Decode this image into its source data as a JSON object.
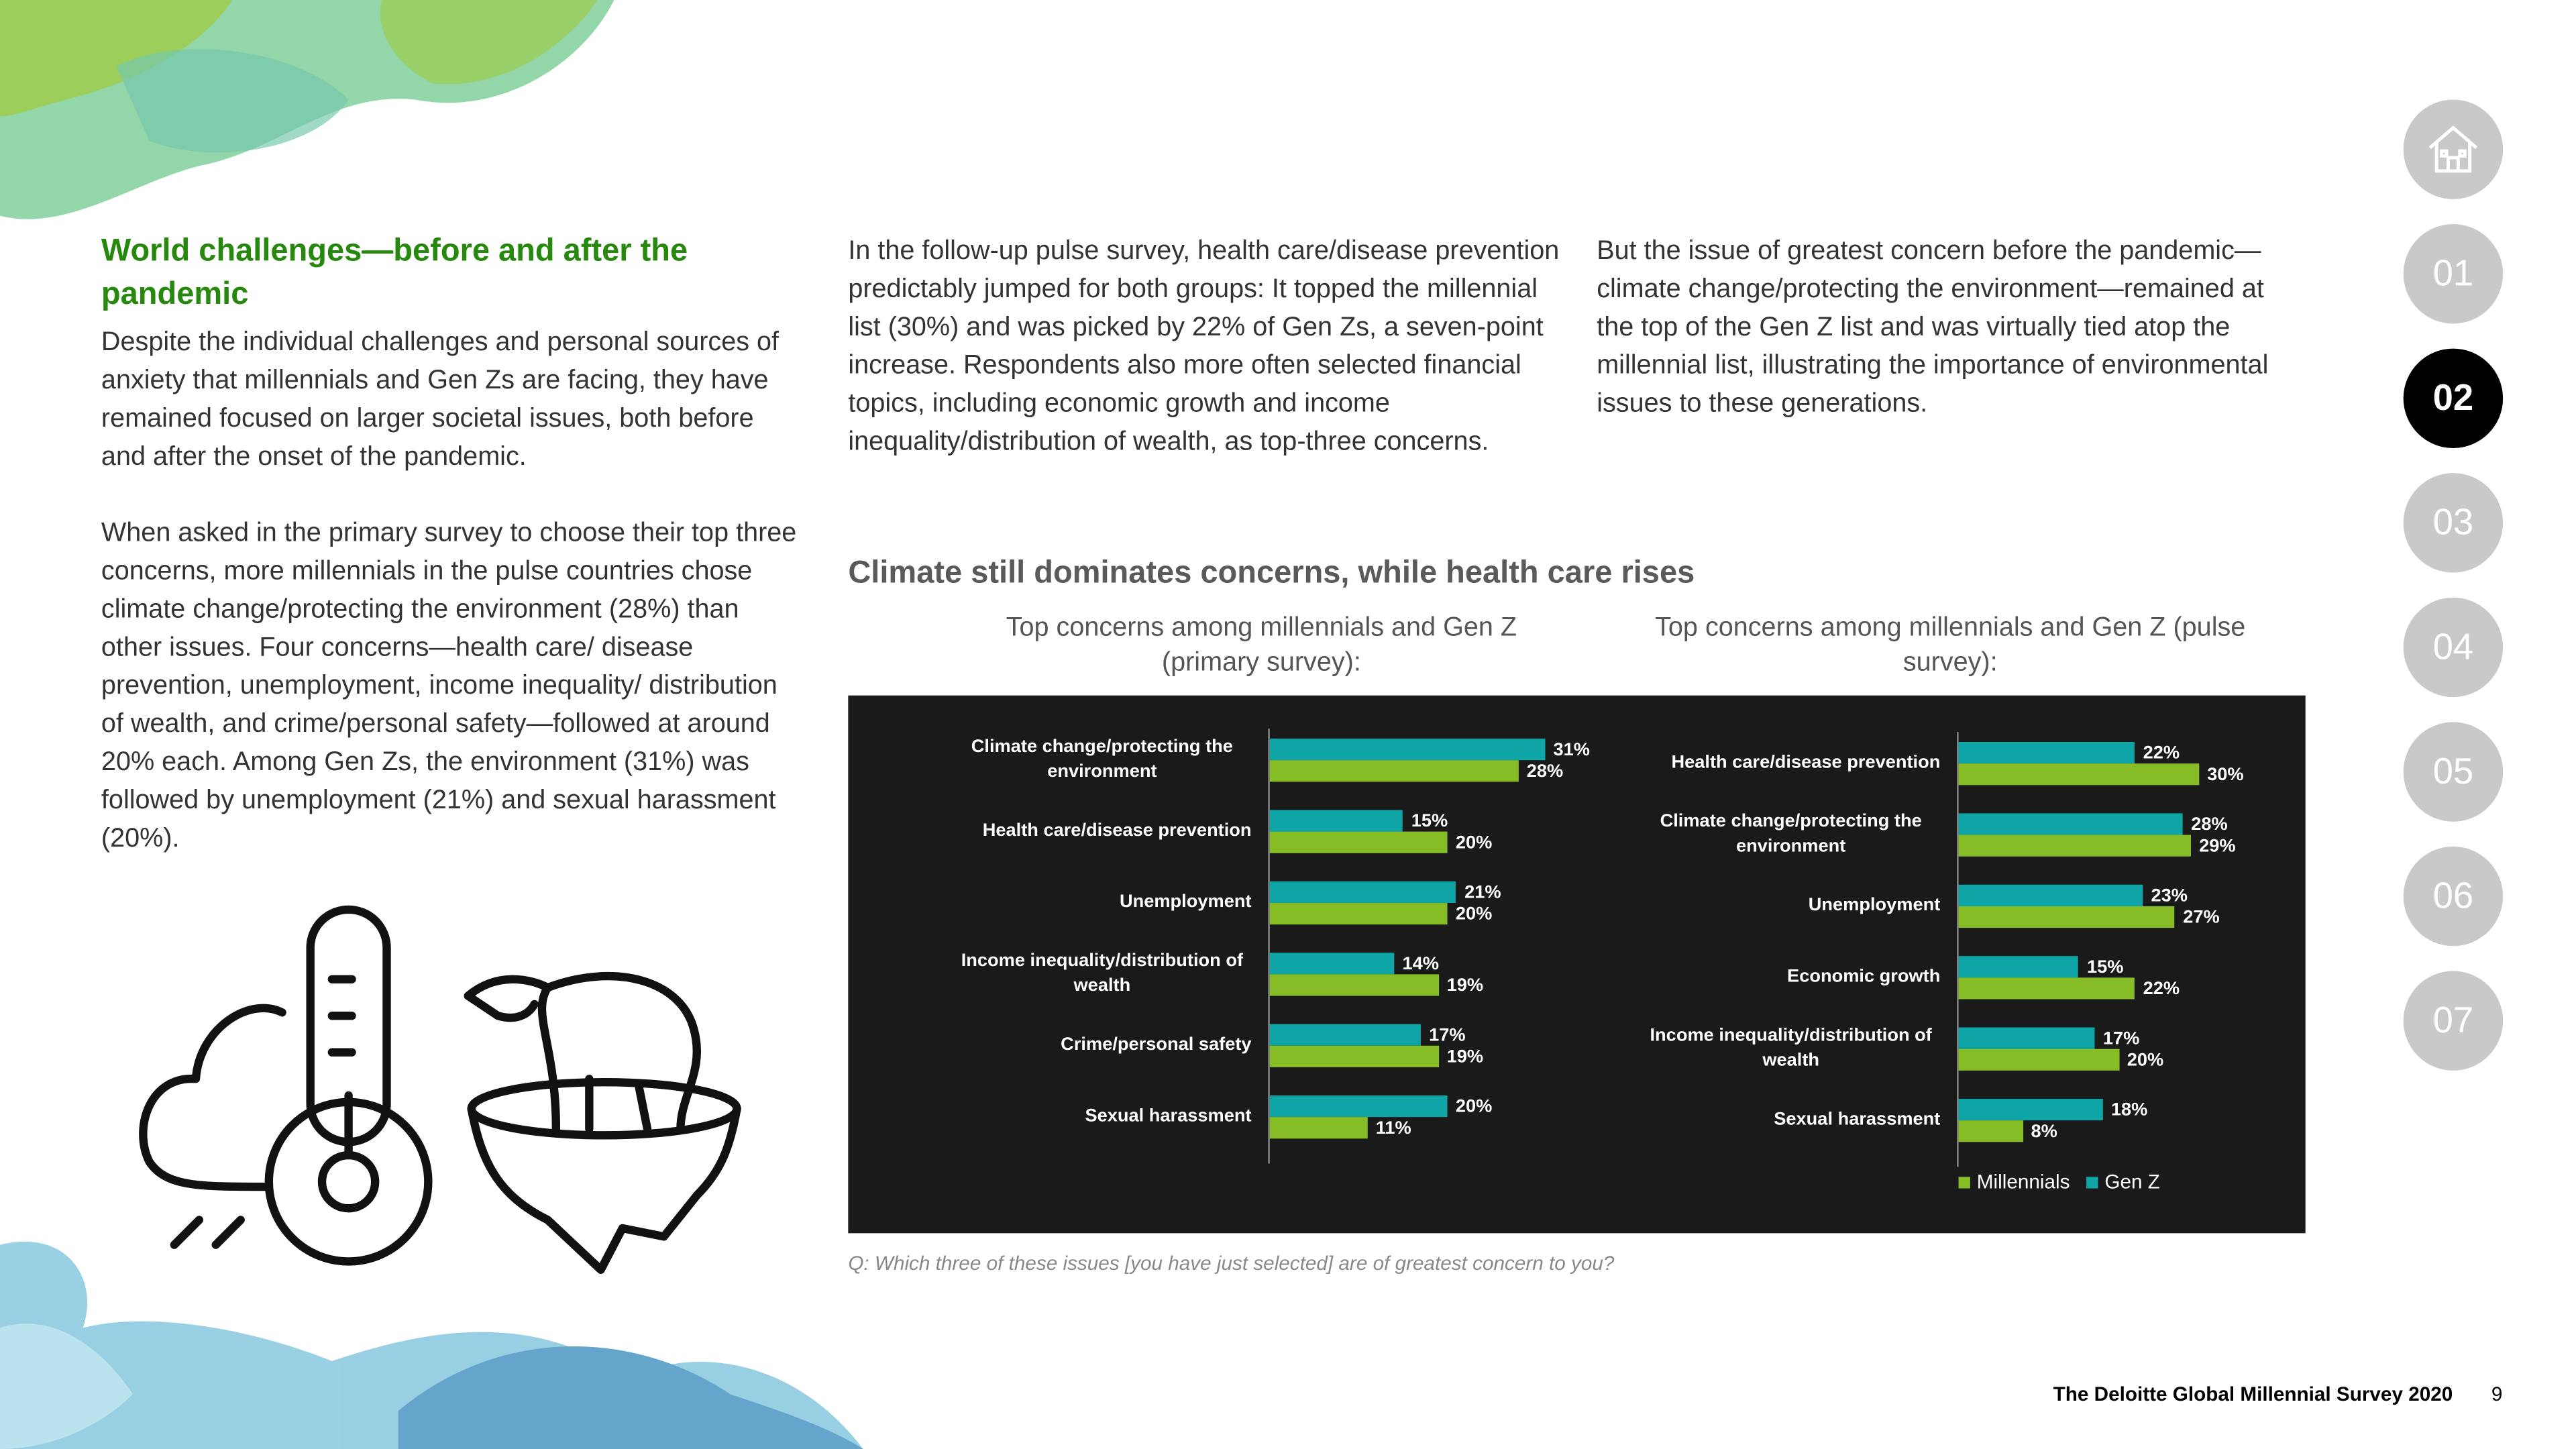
{
  "nav": {
    "items": [
      "01",
      "02",
      "03",
      "04",
      "05",
      "06",
      "07"
    ],
    "active": 1
  },
  "article": {
    "heading": "World challenges—before and after the pandemic",
    "col1": [
      "Despite the individual challenges and personal sources of anxiety that millennials and Gen Zs are facing, they have remained focused on larger societal issues, both before and after the onset of the pandemic.",
      "When asked in the primary survey to choose their top three concerns, more millennials in the pulse countries chose climate change/protecting the environment (28%) than other issues. Four concerns—health care/ disease prevention, unemployment, income inequality/ distribution of wealth, and crime/personal safety—followed at around 20% each. Among Gen Zs, the environment (31%) was followed by unemployment (21%) and sexual harassment (20%)."
    ],
    "col2": "In the follow-up pulse survey, health care/disease prevention predictably jumped for both groups: It topped the millennial list (30%) and was picked by 22% of Gen Zs, a seven-point increase. Respondents also more often selected financial topics, including economic growth and income inequality/distribution of wealth, as top-three concerns.",
    "col3": "But the issue of greatest concern before the pandemic—climate change/protecting the environment—remained at the top of the Gen Z list and was virtually tied atop the millennial list, illustrating the importance of environmental issues to these generations.",
    "figure_title": "Climate still dominates concerns, while health care rises",
    "footnote": "Q: Which three of these issues [you have just selected] are of greatest concern to you?"
  },
  "footer": {
    "title": "The Deloitte Global Millennial Survey 2020",
    "page": "9"
  },
  "chart_data": [
    {
      "type": "bar",
      "orientation": "horizontal",
      "subtitle": "Top concerns among millennials and Gen Z (primary survey):",
      "categories": [
        "Climate change/protecting the environment",
        "Health care/disease prevention",
        "Unemployment",
        "Income inequality/distribution of wealth",
        "Crime/personal safety",
        "Sexual harassment"
      ],
      "xlim": [
        0,
        40
      ],
      "series": [
        {
          "name": "Millennials",
          "color": "#86bc25",
          "values": [
            28,
            20,
            20,
            19,
            19,
            11
          ],
          "value_labels": [
            "28%",
            "20%",
            "20%",
            "19%",
            "19%",
            "11%"
          ]
        },
        {
          "name": "Gen Z",
          "color": "#0fa5a6",
          "values": [
            31,
            15,
            21,
            14,
            17,
            20
          ],
          "value_labels": [
            "31%",
            "15%",
            "21%",
            "14%",
            "17%",
            "20%"
          ]
        }
      ]
    },
    {
      "type": "bar",
      "orientation": "horizontal",
      "subtitle": "Top concerns among millennials and Gen Z (pulse survey):",
      "categories": [
        "Health care/disease prevention",
        "Climate change/protecting the environment",
        "Unemployment",
        "Economic growth",
        "Income inequality/distribution of wealth",
        "Sexual harassment"
      ],
      "xlim": [
        0,
        40
      ],
      "legend": "bottom-right",
      "series": [
        {
          "name": "Millennials",
          "color": "#86bc25",
          "values": [
            30,
            29,
            27,
            22,
            20,
            8
          ],
          "value_labels": [
            "30%",
            "29%",
            "27%",
            "22%",
            "20%",
            "8%"
          ]
        },
        {
          "name": "Gen Z",
          "color": "#0fa5a6",
          "values": [
            22,
            28,
            23,
            15,
            17,
            18
          ],
          "value_labels": [
            "22%",
            "28%",
            "23%",
            "15%",
            "17%",
            "18%"
          ]
        }
      ]
    }
  ]
}
